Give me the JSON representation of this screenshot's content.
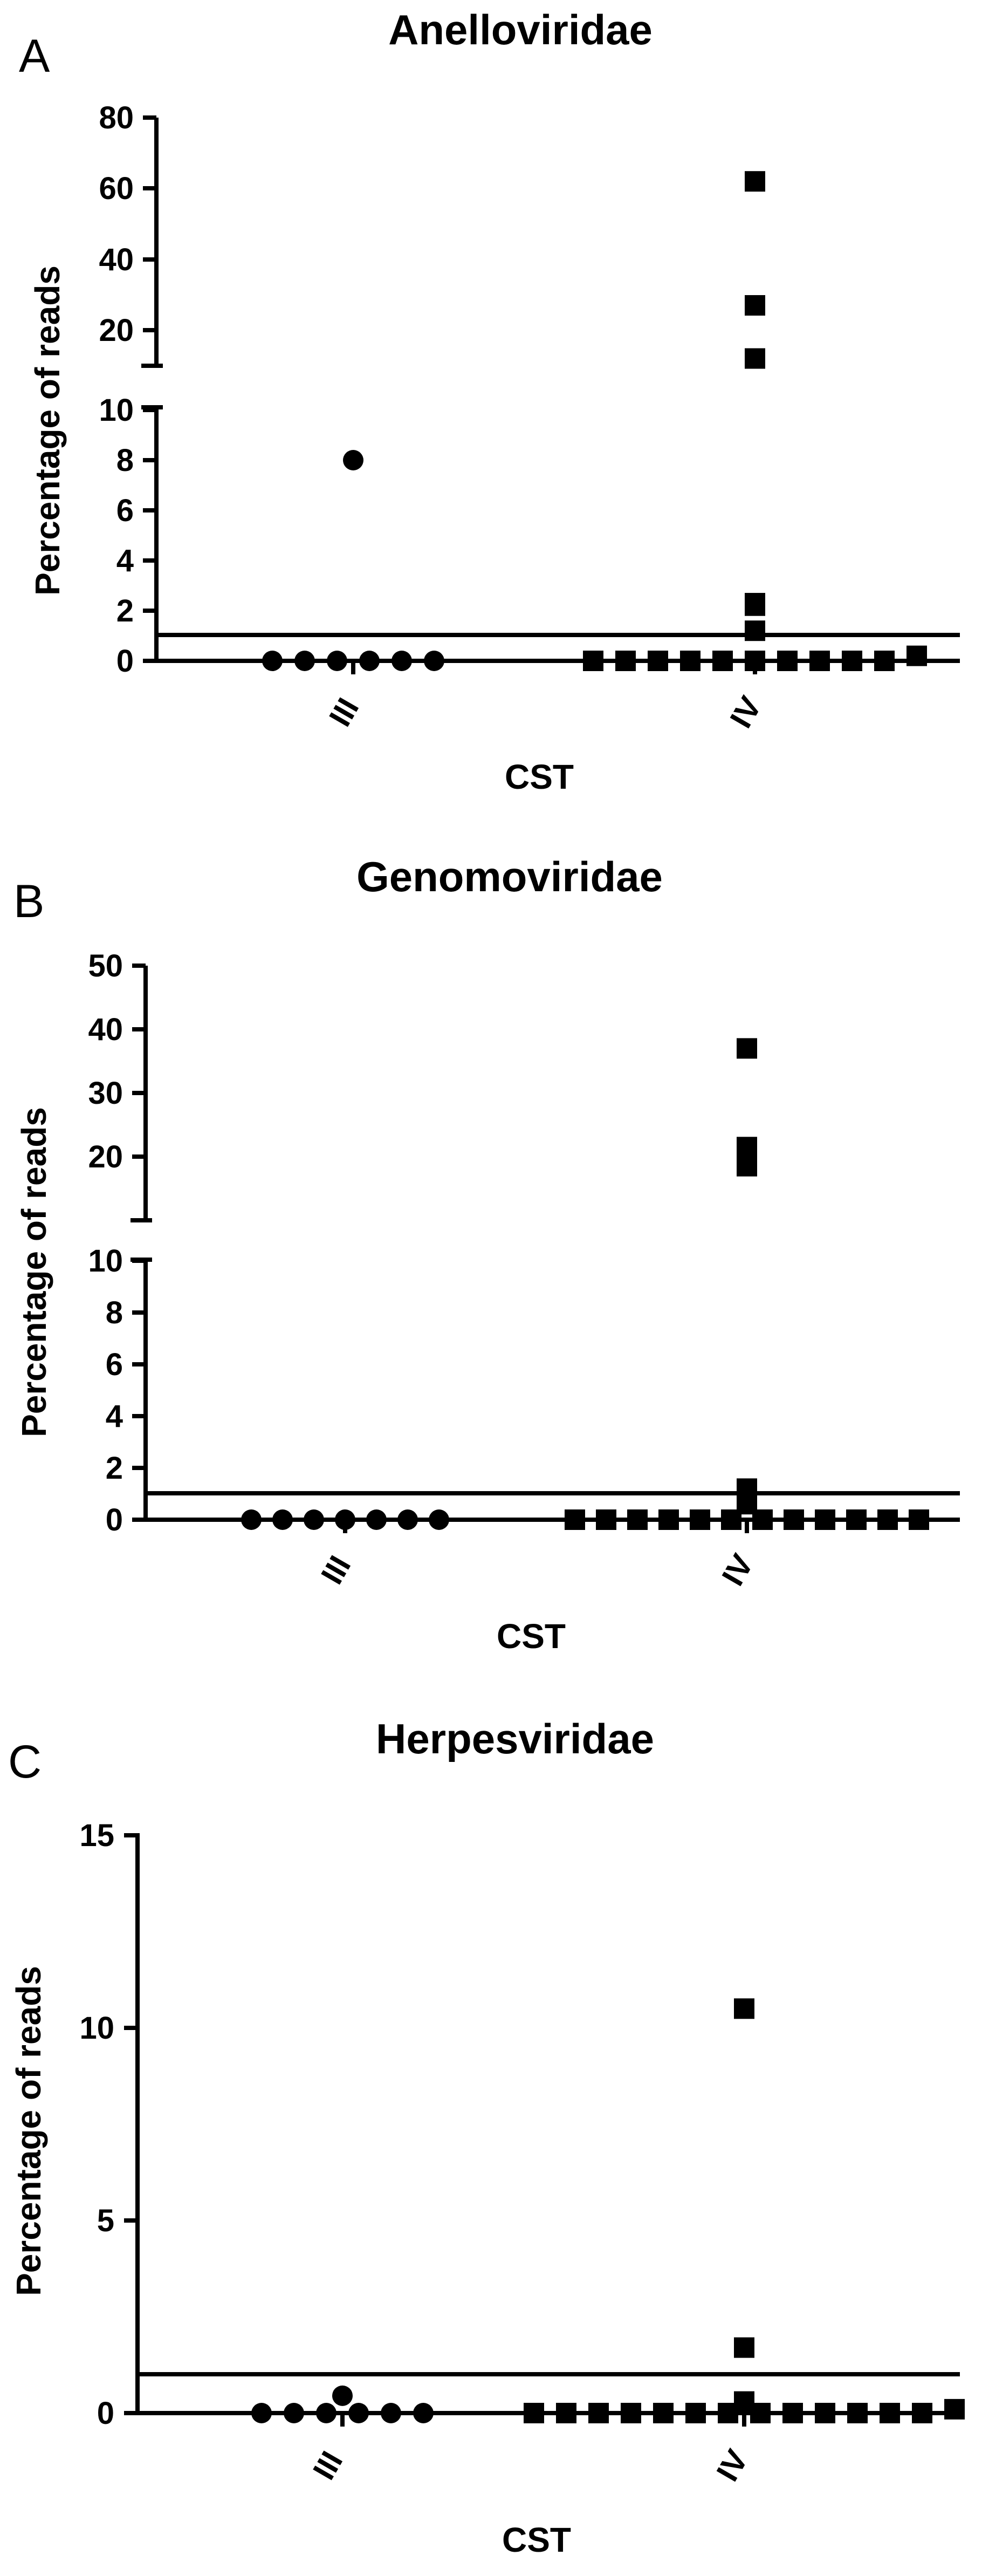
{
  "chart_data": [
    {
      "panel": "A",
      "type": "scatter",
      "title": "Anelloviridae",
      "xlabel": "CST",
      "ylabel": "Percentage of reads",
      "categories": [
        "III",
        "IV"
      ],
      "y_axis_break": true,
      "ylim_lower": [
        0,
        10
      ],
      "ylim_upper": [
        10,
        80
      ],
      "yticks_lower": [
        0,
        2,
        4,
        6,
        8,
        10
      ],
      "yticks_upper": [
        20,
        40,
        60,
        80
      ],
      "reference_line": 1,
      "series": [
        {
          "name": "III",
          "marker": "circle",
          "values": [
            0,
            0,
            0,
            0,
            0,
            0,
            8
          ]
        },
        {
          "name": "IV",
          "marker": "square",
          "values": [
            0,
            0,
            0,
            0,
            0,
            0,
            0,
            0,
            0,
            0,
            0.2,
            1.2,
            2.2,
            2.3,
            12,
            27,
            62
          ]
        }
      ]
    },
    {
      "panel": "B",
      "type": "scatter",
      "title": "Genomoviridae",
      "xlabel": "CST",
      "ylabel": "Percentage of reads",
      "categories": [
        "III",
        "IV"
      ],
      "y_axis_break": true,
      "ylim_lower": [
        0,
        10
      ],
      "ylim_upper": [
        10,
        50
      ],
      "yticks_lower": [
        0,
        2,
        4,
        6,
        8,
        10
      ],
      "yticks_upper": [
        20,
        30,
        40,
        50
      ],
      "reference_line": 1,
      "series": [
        {
          "name": "III",
          "marker": "circle",
          "values": [
            0,
            0,
            0,
            0,
            0,
            0,
            0
          ]
        },
        {
          "name": "IV",
          "marker": "square",
          "values": [
            0,
            0,
            0,
            0,
            0,
            0,
            0,
            0,
            0,
            0,
            0,
            0,
            0.6,
            1.2,
            18.5,
            21.5,
            37
          ]
        }
      ]
    },
    {
      "panel": "C",
      "type": "scatter",
      "title": "Herpesviridae",
      "xlabel": "CST",
      "ylabel": "Percentage of reads",
      "categories": [
        "III",
        "IV"
      ],
      "y_axis_break": false,
      "ylim": [
        0,
        15
      ],
      "yticks": [
        0,
        5,
        10,
        15
      ],
      "reference_line": 1,
      "series": [
        {
          "name": "III",
          "marker": "circle",
          "values": [
            0,
            0,
            0,
            0,
            0,
            0,
            0.45
          ]
        },
        {
          "name": "IV",
          "marker": "square",
          "values": [
            0,
            0,
            0,
            0,
            0,
            0,
            0,
            0,
            0,
            0,
            0,
            0,
            0,
            0.1,
            0.3,
            1.7,
            10.5
          ]
        }
      ]
    }
  ]
}
